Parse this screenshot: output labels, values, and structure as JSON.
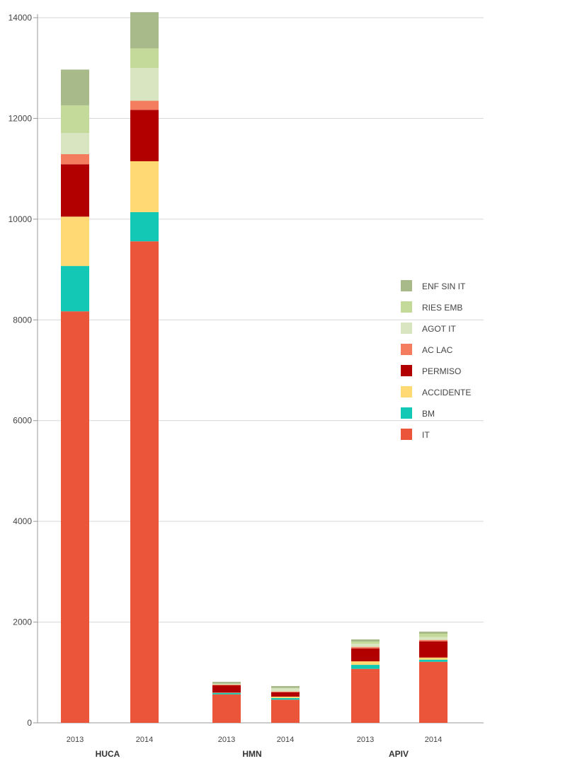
{
  "chart_data": {
    "type": "bar",
    "stacked": true,
    "title": "",
    "xlabel": "",
    "ylabel": "",
    "ylim": [
      0,
      14000
    ],
    "yticks": [
      0,
      2000,
      4000,
      6000,
      8000,
      10000,
      12000,
      14000
    ],
    "grid": true,
    "legend_position": "right",
    "groups": [
      "HUCA",
      "HMN",
      "APIV"
    ],
    "categories": [
      "2013",
      "2014",
      "2013",
      "2014",
      "2013",
      "2014"
    ],
    "category_groups": [
      "HUCA",
      "HUCA",
      "HMN",
      "HMN",
      "APIV",
      "APIV"
    ],
    "series": [
      {
        "name": "IT",
        "color": "#EB553A",
        "values": [
          8170,
          9560,
          566,
          459,
          1072,
          1212
        ]
      },
      {
        "name": "BM",
        "color": "#13C8B5",
        "values": [
          900,
          580,
          28,
          32,
          79,
          42
        ]
      },
      {
        "name": "ACCIDENTE",
        "color": "#FFD974",
        "values": [
          980,
          1010,
          5,
          29,
          70,
          42
        ]
      },
      {
        "name": "PERMISO",
        "color": "#B20000",
        "values": [
          1040,
          1020,
          145,
          88,
          257,
          323
        ]
      },
      {
        "name": "AC LAC",
        "color": "#F37D5E",
        "values": [
          200,
          180,
          14,
          14,
          29,
          28
        ]
      },
      {
        "name": "AGOT IT",
        "color": "#D9E4C0",
        "values": [
          420,
          650,
          10,
          61,
          66,
          56
        ]
      },
      {
        "name": "RIES EMB",
        "color": "#C3DA9A",
        "values": [
          550,
          390,
          9,
          9,
          42,
          66
        ]
      },
      {
        "name": "ENF SIN IT",
        "color": "#A8BA8A",
        "values": [
          710,
          720,
          37,
          38,
          42,
          42
        ]
      }
    ]
  }
}
